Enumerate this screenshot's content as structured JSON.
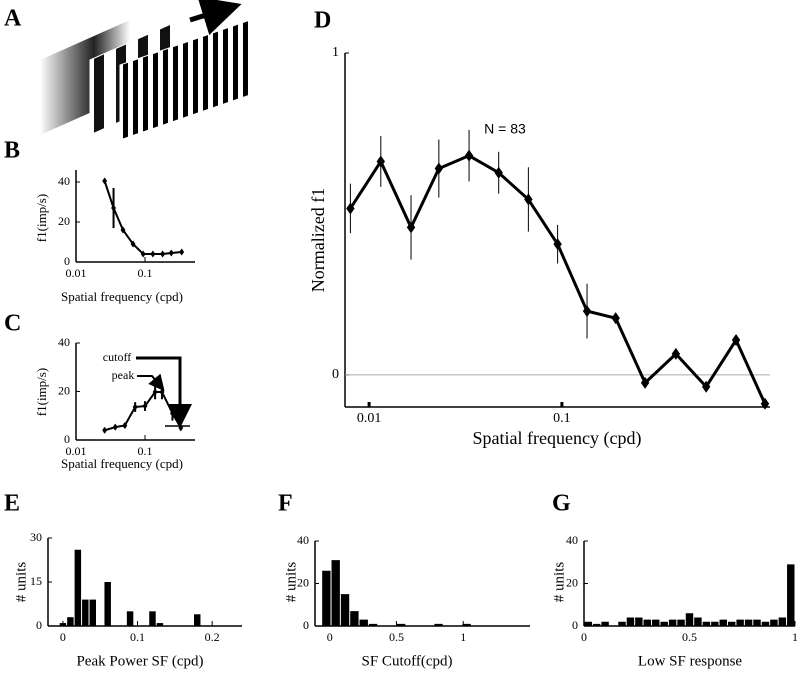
{
  "illustration": {
    "label": "A"
  },
  "chart_data": [
    {
      "type": "line",
      "label": "B",
      "xlabel": "Spatial frequency (cpd)",
      "ylabel": "f1(imp/s)",
      "xscale": "log",
      "color": "#000000",
      "x": [
        0.026,
        0.035,
        0.048,
        0.067,
        0.094,
        0.13,
        0.18,
        0.24,
        0.34
      ],
      "values": [
        40.5,
        27,
        16,
        9,
        4,
        4,
        4,
        4.5,
        5
      ],
      "errors": [
        1,
        10,
        1,
        1,
        1,
        1,
        1,
        1,
        1
      ],
      "xlim": [
        0.01,
        0.53
      ],
      "xticks": [
        0.01,
        0.1
      ],
      "ylim": [
        0,
        46
      ],
      "yticks": [
        0,
        20,
        40
      ]
    },
    {
      "type": "line",
      "label": "C",
      "xlabel": "Spatial frequency (cpd)",
      "ylabel": "f1(imp/s)",
      "xscale": "log",
      "color": "#000000",
      "x": [
        0.026,
        0.037,
        0.051,
        0.072,
        0.1,
        0.14,
        0.176,
        0.25,
        0.33
      ],
      "values": [
        4,
        5.3,
        6,
        13.6,
        14,
        19.8,
        19.8,
        11,
        5
      ],
      "errors": [
        1,
        1,
        1,
        2,
        2,
        3,
        3,
        3,
        1
      ],
      "annotations": [
        "cutoff",
        "peak"
      ],
      "xlim": [
        0.01,
        0.53
      ],
      "xticks": [
        0.01,
        0.1
      ],
      "ylim": [
        0,
        40
      ],
      "yticks": [
        0,
        20,
        40
      ]
    },
    {
      "type": "line",
      "label": "D",
      "xlabel": "Spatial frequency (cpd)",
      "ylabel": "Normalized f1",
      "xscale": "log",
      "color": "#000000",
      "zero_line": true,
      "x": [
        0.008,
        0.0115,
        0.0165,
        0.023,
        0.033,
        0.047,
        0.067,
        0.095,
        0.135,
        0.19,
        0.27,
        0.39,
        0.56,
        0.8,
        1.13
      ],
      "values": [
        0.517,
        0.663,
        0.458,
        0.641,
        0.681,
        0.628,
        0.545,
        0.406,
        0.198,
        0.176,
        -0.025,
        0.065,
        -0.037,
        0.108,
        -0.09
      ],
      "errors": [
        0.077,
        0.079,
        0.1,
        0.09,
        0.08,
        0.065,
        0.1,
        0.06,
        0.085,
        0.01,
        0.01,
        0.01,
        0.01,
        0.01,
        0.01
      ],
      "annotations": [
        "N = 83"
      ],
      "xlim": [
        0.0075,
        1.2
      ],
      "xticks": [
        0.01,
        0.1
      ],
      "ylim": [
        -0.1,
        1
      ],
      "yticks": [
        0,
        1
      ]
    },
    {
      "type": "histogram",
      "label": "E",
      "xlabel": "Peak Power SF (cpd)",
      "ylabel": "# units",
      "color": "#000000",
      "bins": [
        -0.005,
        0.005,
        0.015,
        0.025,
        0.035,
        0.045,
        0.055,
        0.065,
        0.075,
        0.085,
        0.095,
        0.105,
        0.115,
        0.125,
        0.135,
        0.145,
        0.155,
        0.165,
        0.175,
        0.185
      ],
      "counts": [
        1,
        3,
        26,
        9,
        9,
        0,
        15,
        0,
        0,
        5,
        0,
        0,
        5,
        1,
        0,
        0,
        0,
        0,
        4
      ],
      "xlim": [
        -0.02,
        0.24
      ],
      "xticks": [
        0,
        0.1,
        0.2
      ],
      "ylim": [
        0,
        30
      ],
      "yticks": [
        0,
        15,
        30
      ]
    },
    {
      "type": "histogram",
      "label": "F",
      "xlabel": "SF Cutoff(cpd)",
      "ylabel": "# units",
      "color": "#000000",
      "bins": [
        -0.06,
        0.01,
        0.08,
        0.15,
        0.22,
        0.29,
        0.36,
        0.43,
        0.5,
        0.57,
        0.64,
        0.71,
        0.78,
        0.85,
        0.92,
        0.99,
        1.06
      ],
      "counts": [
        26,
        31,
        15,
        7,
        3,
        1,
        0,
        0,
        1,
        0,
        0,
        0,
        1,
        0,
        0,
        1
      ],
      "xlim": [
        -0.11,
        1.5
      ],
      "xticks": [
        0,
        0.5,
        1
      ],
      "ylim": [
        0,
        40
      ],
      "yticks": [
        0,
        20,
        40
      ]
    },
    {
      "type": "histogram",
      "label": "G",
      "xlabel": "Low SF response",
      "ylabel": "# units",
      "color": "#000000",
      "bins": [
        0,
        0.04,
        0.08,
        0.12,
        0.16,
        0.2,
        0.24,
        0.28,
        0.32,
        0.36,
        0.4,
        0.44,
        0.48,
        0.52,
        0.56,
        0.6,
        0.64,
        0.68,
        0.72,
        0.76,
        0.8,
        0.84,
        0.88,
        0.92,
        0.96,
        1
      ],
      "counts": [
        2,
        1,
        2,
        0,
        2,
        4,
        4,
        3,
        3,
        2,
        3,
        3,
        6,
        4,
        2,
        2,
        3,
        2,
        3,
        3,
        3,
        2,
        3,
        4,
        29
      ],
      "xlim": [
        0,
        1
      ],
      "xticks": [
        0,
        0.5,
        1
      ],
      "ylim": [
        0,
        40
      ],
      "yticks": [
        0,
        20,
        40
      ]
    }
  ]
}
